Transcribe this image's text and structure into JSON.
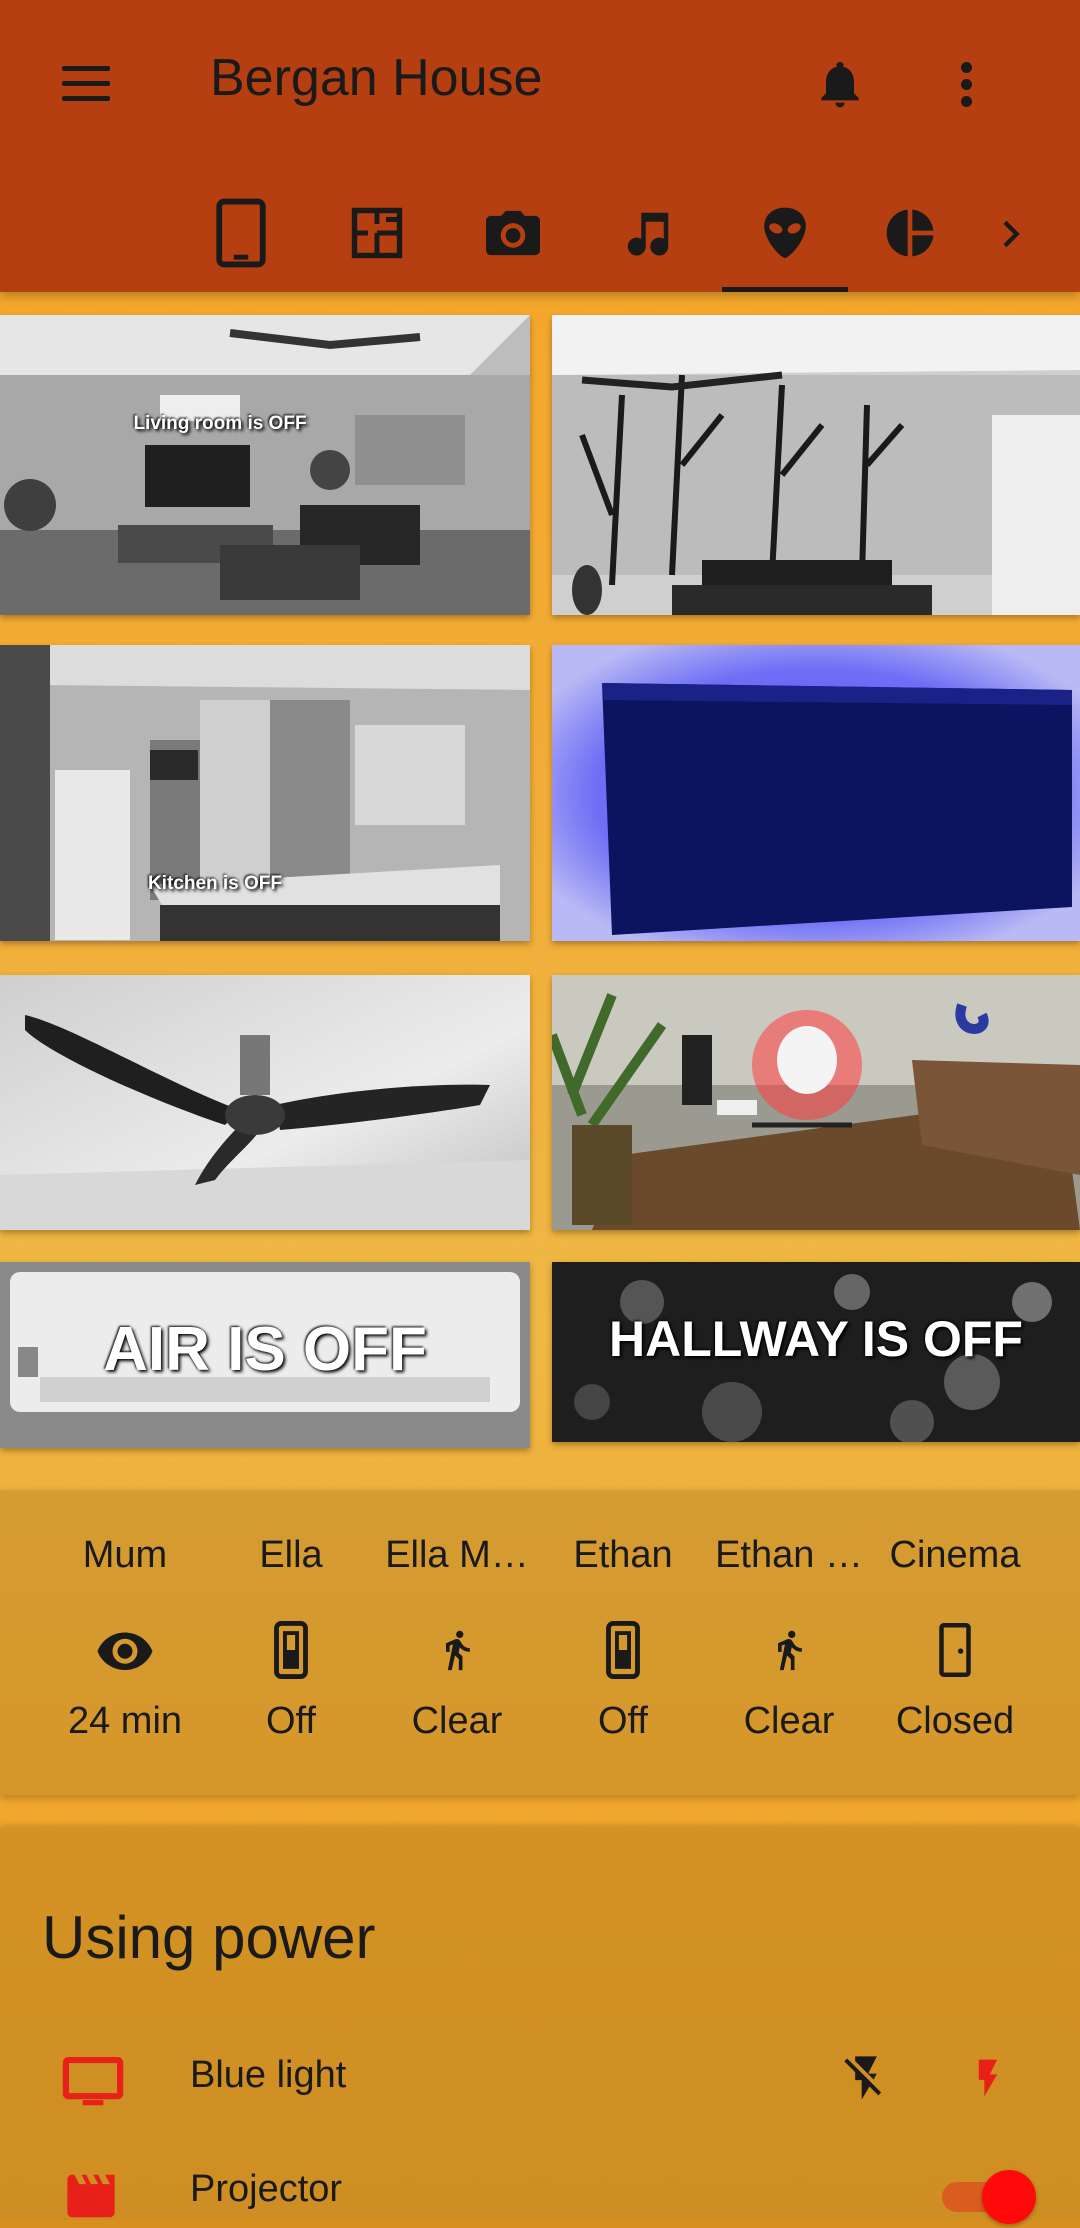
{
  "header": {
    "title": "Bergan House",
    "tabs": [
      {
        "icon": "tablet-icon"
      },
      {
        "icon": "floorplan-icon"
      },
      {
        "icon": "camera-icon"
      },
      {
        "icon": "music-icon"
      },
      {
        "icon": "alien-icon",
        "active": true
      },
      {
        "icon": "pie-icon"
      }
    ]
  },
  "cameras": [
    {
      "name": "living-room",
      "caption": "Living room is OFF"
    },
    {
      "name": "dining-room",
      "caption": ""
    },
    {
      "name": "kitchen",
      "caption": "Kitchen is OFF"
    },
    {
      "name": "tv-wall",
      "caption": ""
    },
    {
      "name": "ceiling-fan",
      "caption": ""
    },
    {
      "name": "study-desk",
      "caption": ""
    },
    {
      "name": "air",
      "caption": "AIR IS OFF"
    },
    {
      "name": "hallway",
      "caption": "HALLWAY IS OFF"
    }
  ],
  "glance": [
    {
      "name": "Mum",
      "icon": "eye-icon",
      "state": "24 min"
    },
    {
      "name": "Ella",
      "icon": "switch-icon",
      "state": "Off"
    },
    {
      "name": "Ella M…",
      "icon": "walk-icon",
      "state": "Clear"
    },
    {
      "name": "Ethan",
      "icon": "switch-icon",
      "state": "Off"
    },
    {
      "name": "Ethan …",
      "icon": "walk-icon",
      "state": "Clear"
    },
    {
      "name": "Cinema",
      "icon": "door-icon",
      "state": "Closed"
    }
  ],
  "power": {
    "title": "Using power",
    "rows": [
      {
        "label": "Blue light",
        "icon": "tv-icon"
      },
      {
        "label": "Projector",
        "icon": "clapper-icon",
        "toggle_on": true
      }
    ]
  },
  "colors": {
    "header": "#b53f10",
    "accent": "#e8201a",
    "text": "#1a1a1a"
  }
}
